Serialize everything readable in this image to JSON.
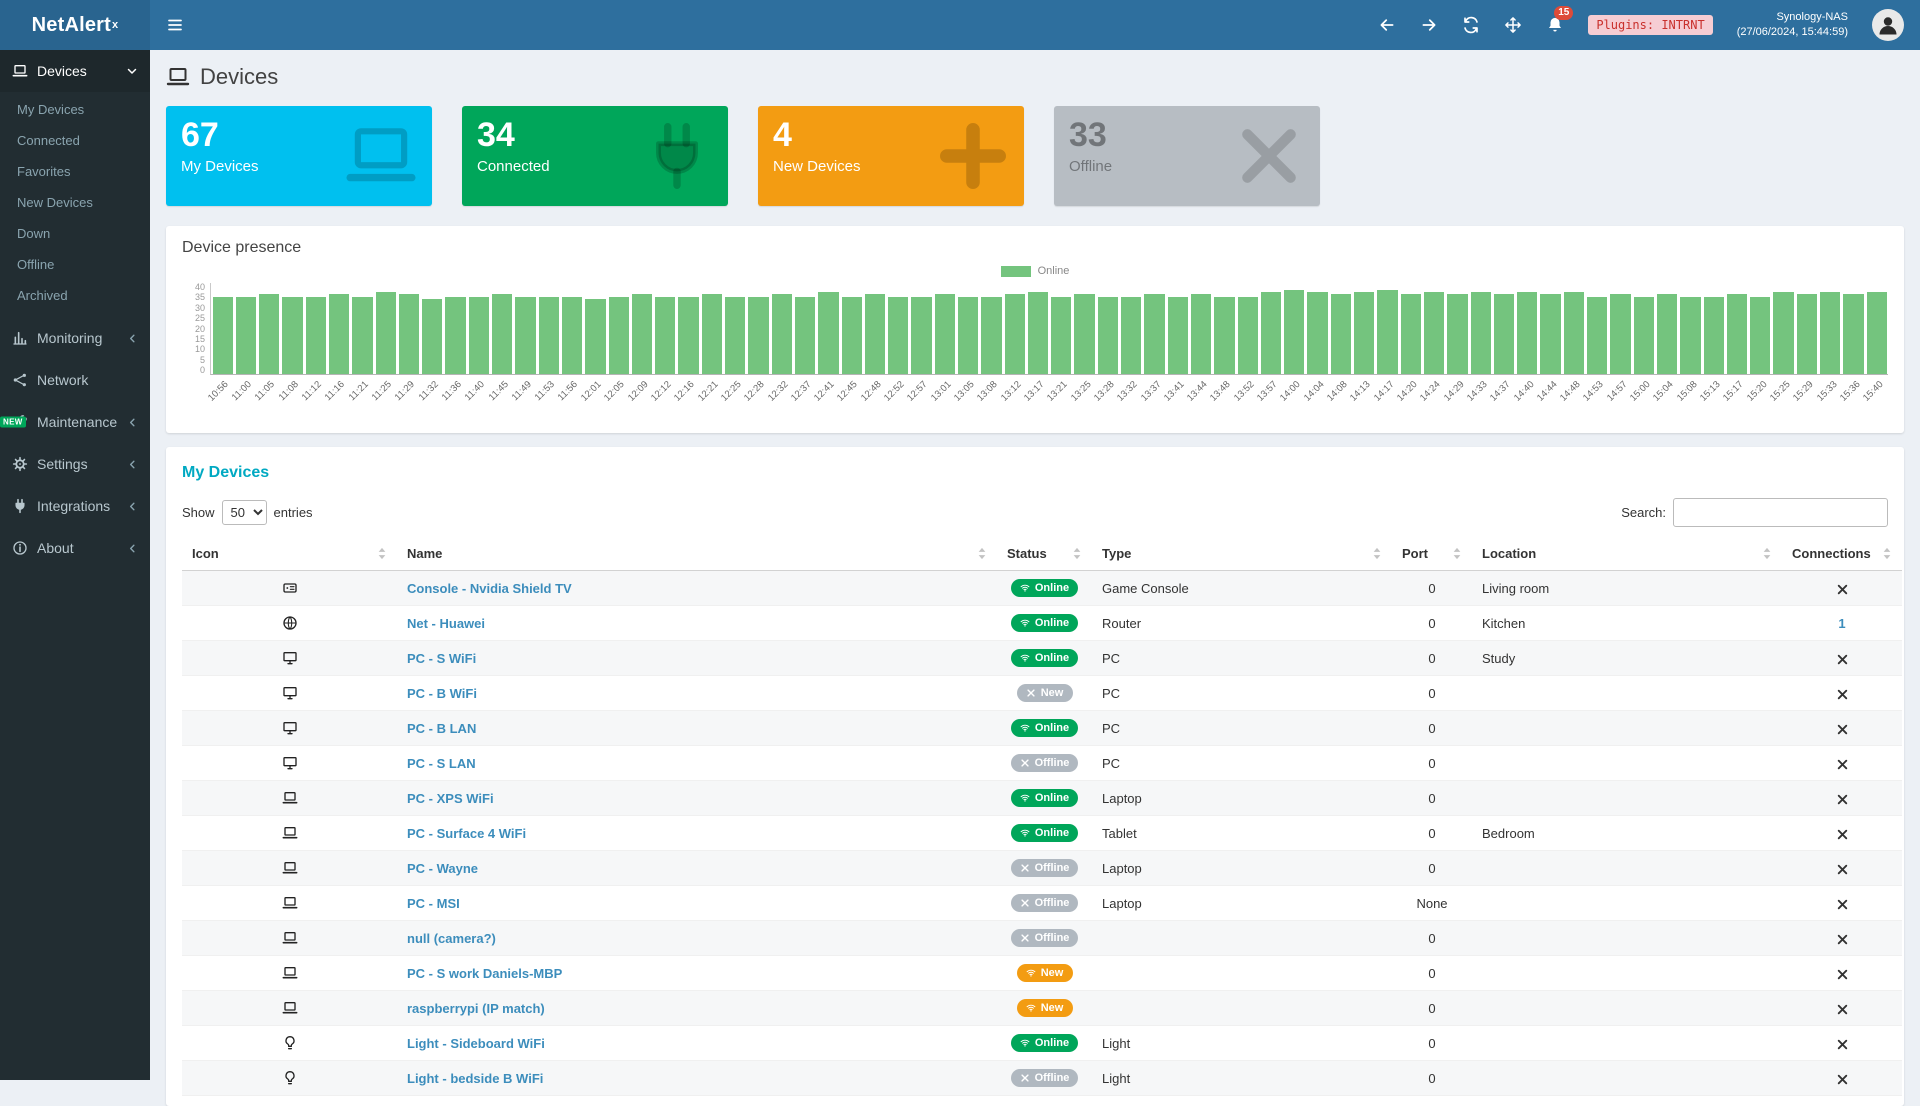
{
  "colors": {
    "topbar": "#2e6f9e",
    "topbar_dark": "#29648f",
    "green": "#00a65a",
    "aqua": "#00c0ef",
    "orange": "#f39c12",
    "gray_card": "#b7bdc3",
    "badge_gray": "#b0b8c0",
    "chart_green": "#74c47e",
    "link": "#3c8dbc",
    "red": "#dd4b39",
    "heading": "#00a9c2"
  },
  "topbar": {
    "logo_text": "NetAlert",
    "logo_sup": "x",
    "notification_count": "15",
    "plugins_badge": "Plugins: INTRNT",
    "host_name": "Synology-NAS",
    "host_time": "(27/06/2024, 15:44:59)"
  },
  "sidebar": {
    "devices": {
      "label": "Devices"
    },
    "devices_sub": [
      "My Devices",
      "Connected",
      "Favorites",
      "New Devices",
      "Down",
      "Offline",
      "Archived"
    ],
    "items": [
      {
        "label": "Monitoring",
        "icon": "chart-bar-icon",
        "chevron": true
      },
      {
        "label": "Network",
        "icon": "network-icon",
        "chevron": false
      },
      {
        "label": "Maintenance",
        "icon": "wrench-icon",
        "chevron": true,
        "badge": "NEW"
      },
      {
        "label": "Settings",
        "icon": "gear-icon",
        "chevron": true
      },
      {
        "label": "Integrations",
        "icon": "plug-icon",
        "chevron": true
      },
      {
        "label": "About",
        "icon": "info-icon",
        "chevron": true
      }
    ]
  },
  "page": {
    "title": "Devices"
  },
  "stats": [
    {
      "value": "67",
      "label": "My Devices",
      "color": "#00c0ef",
      "icon": "laptop-icon",
      "muted": false
    },
    {
      "value": "34",
      "label": "Connected",
      "color": "#00a65a",
      "icon": "plug-icon",
      "muted": false
    },
    {
      "value": "4",
      "label": "New Devices",
      "color": "#f39c12",
      "icon": "plus-icon",
      "muted": false
    },
    {
      "value": "33",
      "label": "Offline",
      "color": "#b7bdc3",
      "icon": "x-icon",
      "muted": true
    }
  ],
  "chart_data": {
    "type": "bar",
    "title": "Device presence",
    "legend": [
      "Online"
    ],
    "series_color": "#74c47e",
    "ylim": [
      0,
      40
    ],
    "yticks": [
      0,
      5,
      10,
      15,
      20,
      25,
      30,
      35,
      40
    ],
    "x": [
      "10:56",
      "11:00",
      "11:05",
      "11:08",
      "11:12",
      "11:16",
      "11:21",
      "11:25",
      "11:29",
      "11:32",
      "11:36",
      "11:40",
      "11:45",
      "11:49",
      "11:53",
      "11:56",
      "12:01",
      "12:05",
      "12:09",
      "12:12",
      "12:16",
      "12:21",
      "12:25",
      "12:28",
      "12:32",
      "12:37",
      "12:41",
      "12:45",
      "12:48",
      "12:52",
      "12:57",
      "13:01",
      "13:05",
      "13:08",
      "13:12",
      "13:17",
      "13:21",
      "13:25",
      "13:28",
      "13:32",
      "13:37",
      "13:41",
      "13:44",
      "13:48",
      "13:52",
      "13:57",
      "14:00",
      "14:04",
      "14:08",
      "14:13",
      "14:17",
      "14:20",
      "14:24",
      "14:29",
      "14:33",
      "14:37",
      "14:40",
      "14:44",
      "14:48",
      "14:53",
      "14:57",
      "15:00",
      "15:04",
      "15:08",
      "15:13",
      "15:17",
      "15:20",
      "15:25",
      "15:29",
      "15:33",
      "15:36",
      "15:40"
    ],
    "values": [
      34,
      34,
      35,
      34,
      34,
      35,
      34,
      36,
      35,
      33,
      34,
      34,
      35,
      34,
      34,
      34,
      33,
      34,
      35,
      34,
      34,
      35,
      34,
      34,
      35,
      34,
      36,
      34,
      35,
      34,
      34,
      35,
      34,
      34,
      35,
      36,
      34,
      35,
      34,
      34,
      35,
      34,
      35,
      34,
      34,
      36,
      37,
      36,
      35,
      36,
      37,
      35,
      36,
      35,
      36,
      35,
      36,
      35,
      36,
      34,
      35,
      34,
      35,
      34,
      34,
      35,
      34,
      36,
      35,
      36,
      35,
      36
    ]
  },
  "table": {
    "title": "My Devices",
    "show_label": "Show",
    "entries_label": "entries",
    "page_size": "50",
    "search_label": "Search:",
    "columns": [
      "Icon",
      "Name",
      "Status",
      "Type",
      "Port",
      "Location",
      "Connections"
    ],
    "rows": [
      {
        "icon": "tv-icon",
        "name": "Console - Nvidia Shield TV",
        "status": {
          "label": "Online",
          "color": "green",
          "icon": "wifi-icon"
        },
        "type": "Game Console",
        "port": "0",
        "location": "Living room",
        "connections": "x"
      },
      {
        "icon": "globe-icon",
        "name": "Net - Huawei",
        "status": {
          "label": "Online",
          "color": "green",
          "icon": "wifi-icon"
        },
        "type": "Router",
        "port": "0",
        "location": "Kitchen",
        "connections": "1"
      },
      {
        "icon": "desktop-icon",
        "name": "PC - S WiFi",
        "status": {
          "label": "Online",
          "color": "green",
          "icon": "wifi-icon"
        },
        "type": "PC",
        "port": "0",
        "location": "Study",
        "connections": "x"
      },
      {
        "icon": "desktop-icon",
        "name": "PC - B WiFi",
        "status": {
          "label": "New",
          "color": "gray",
          "icon": "x-icon"
        },
        "type": "PC",
        "port": "0",
        "location": "",
        "connections": "x"
      },
      {
        "icon": "desktop-icon",
        "name": "PC - B LAN",
        "status": {
          "label": "Online",
          "color": "green",
          "icon": "wifi-icon"
        },
        "type": "PC",
        "port": "0",
        "location": "",
        "connections": "x"
      },
      {
        "icon": "desktop-icon",
        "name": "PC - S LAN",
        "status": {
          "label": "Offline",
          "color": "gray",
          "icon": "x-icon"
        },
        "type": "PC",
        "port": "0",
        "location": "",
        "connections": "x"
      },
      {
        "icon": "laptop-icon",
        "name": "PC - XPS WiFi",
        "status": {
          "label": "Online",
          "color": "green",
          "icon": "wifi-icon"
        },
        "type": "Laptop",
        "port": "0",
        "location": "",
        "connections": "x"
      },
      {
        "icon": "laptop-icon",
        "name": "PC - Surface 4 WiFi",
        "status": {
          "label": "Online",
          "color": "green",
          "icon": "wifi-icon"
        },
        "type": "Tablet",
        "port": "0",
        "location": "Bedroom",
        "connections": "x"
      },
      {
        "icon": "laptop-icon",
        "name": "PC - Wayne",
        "status": {
          "label": "Offline",
          "color": "gray",
          "icon": "x-icon"
        },
        "type": "Laptop",
        "port": "0",
        "location": "",
        "connections": "x"
      },
      {
        "icon": "laptop-icon",
        "name": "PC - MSI",
        "status": {
          "label": "Offline",
          "color": "gray",
          "icon": "x-icon"
        },
        "type": "Laptop",
        "port": "None",
        "location": "",
        "connections": "x"
      },
      {
        "icon": "laptop-icon",
        "name": "null (camera?)",
        "status": {
          "label": "Offline",
          "color": "gray",
          "icon": "x-icon"
        },
        "type": "",
        "port": "0",
        "location": "",
        "connections": "x"
      },
      {
        "icon": "laptop-icon",
        "name": "PC - S work Daniels-MBP",
        "status": {
          "label": "New",
          "color": "orange",
          "icon": "wifi-icon"
        },
        "type": "",
        "port": "0",
        "location": "",
        "connections": "x"
      },
      {
        "icon": "laptop-icon",
        "name": "raspberrypi (IP match)",
        "status": {
          "label": "New",
          "color": "orange",
          "icon": "wifi-icon"
        },
        "type": "",
        "port": "0",
        "location": "",
        "connections": "x"
      },
      {
        "icon": "lightbulb-icon",
        "name": "Light - Sideboard WiFi",
        "status": {
          "label": "Online",
          "color": "green",
          "icon": "wifi-icon"
        },
        "type": "Light",
        "port": "0",
        "location": "",
        "connections": "x"
      },
      {
        "icon": "lightbulb-icon",
        "name": "Light - bedside B WiFi",
        "status": {
          "label": "Offline",
          "color": "gray",
          "icon": "x-icon"
        },
        "type": "Light",
        "port": "0",
        "location": "",
        "connections": "x"
      }
    ]
  }
}
